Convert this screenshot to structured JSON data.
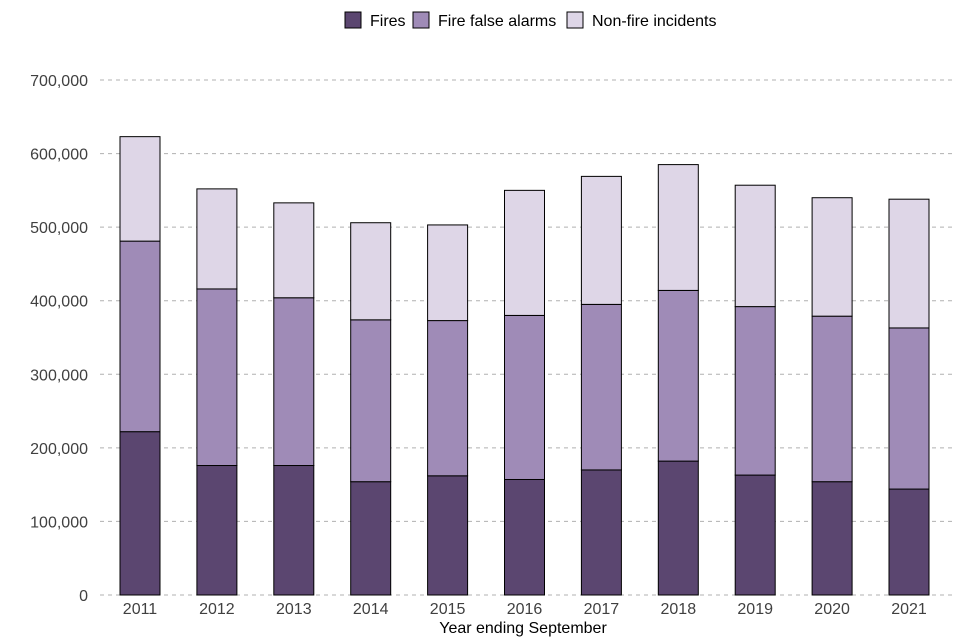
{
  "chart_data": {
    "type": "bar",
    "stacked": true,
    "title": "",
    "xlabel": "Year ending September",
    "ylabel": "",
    "categories": [
      "2011",
      "2012",
      "2013",
      "2014",
      "2015",
      "2016",
      "2017",
      "2018",
      "2019",
      "2020",
      "2021"
    ],
    "series": [
      {
        "name": "Fires",
        "color": "#5b4670",
        "values": [
          222000,
          176000,
          176000,
          154000,
          162000,
          157000,
          170000,
          182000,
          163000,
          154000,
          144000
        ]
      },
      {
        "name": "Fire false alarms",
        "color": "#9f8bb7",
        "values": [
          259000,
          240000,
          228000,
          220000,
          211000,
          223000,
          225000,
          232000,
          229000,
          225000,
          219000
        ]
      },
      {
        "name": "Non-fire incidents",
        "color": "#ded6e7",
        "values": [
          142000,
          136000,
          129000,
          132000,
          130000,
          170000,
          174000,
          171000,
          165000,
          161000,
          175000
        ]
      }
    ],
    "ylim": [
      0,
      700000
    ],
    "yticks": [
      0,
      100000,
      200000,
      300000,
      400000,
      500000,
      600000,
      700000
    ],
    "ytick_labels": [
      "0",
      "100,000",
      "200,000",
      "300,000",
      "400,000",
      "500,000",
      "600,000",
      "700,000"
    ],
    "grid": "horizontal-dashed",
    "legend_position": "top-center"
  }
}
